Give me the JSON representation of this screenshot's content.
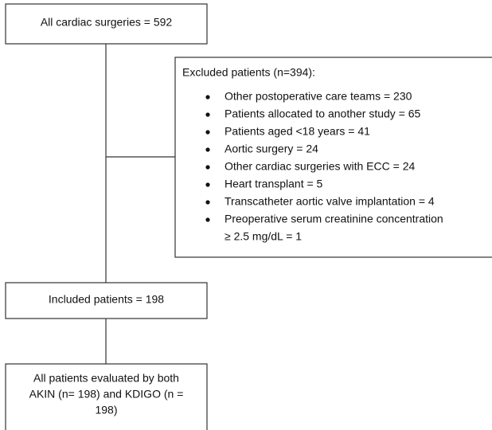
{
  "nodes": [
    {
      "label_lines": [
        "All cardiac surgeries = 592"
      ]
    },
    {
      "label_lines": [
        "Included patients = 198"
      ]
    },
    {
      "label_lines": [
        "All patients evaluated by both",
        "AKIN (n= 198) and KDIGO (n =",
        "198)"
      ]
    }
  ],
  "excluded": {
    "title": "Excluded patients (n=394):",
    "items": [
      [
        "Other postoperative care teams = 230"
      ],
      [
        "Patients allocated to another study = 65"
      ],
      [
        "Patients aged <18 years = 41"
      ],
      [
        "Aortic surgery = 24"
      ],
      [
        "Other cardiac surgeries with ECC = 24"
      ],
      [
        "Heart transplant = 5"
      ],
      [
        "Transcatheter aortic valve implantation = 4"
      ],
      [
        "Preoperative serum creatinine concentration",
        "≥ 2.5 mg/dL = 1"
      ]
    ]
  }
}
